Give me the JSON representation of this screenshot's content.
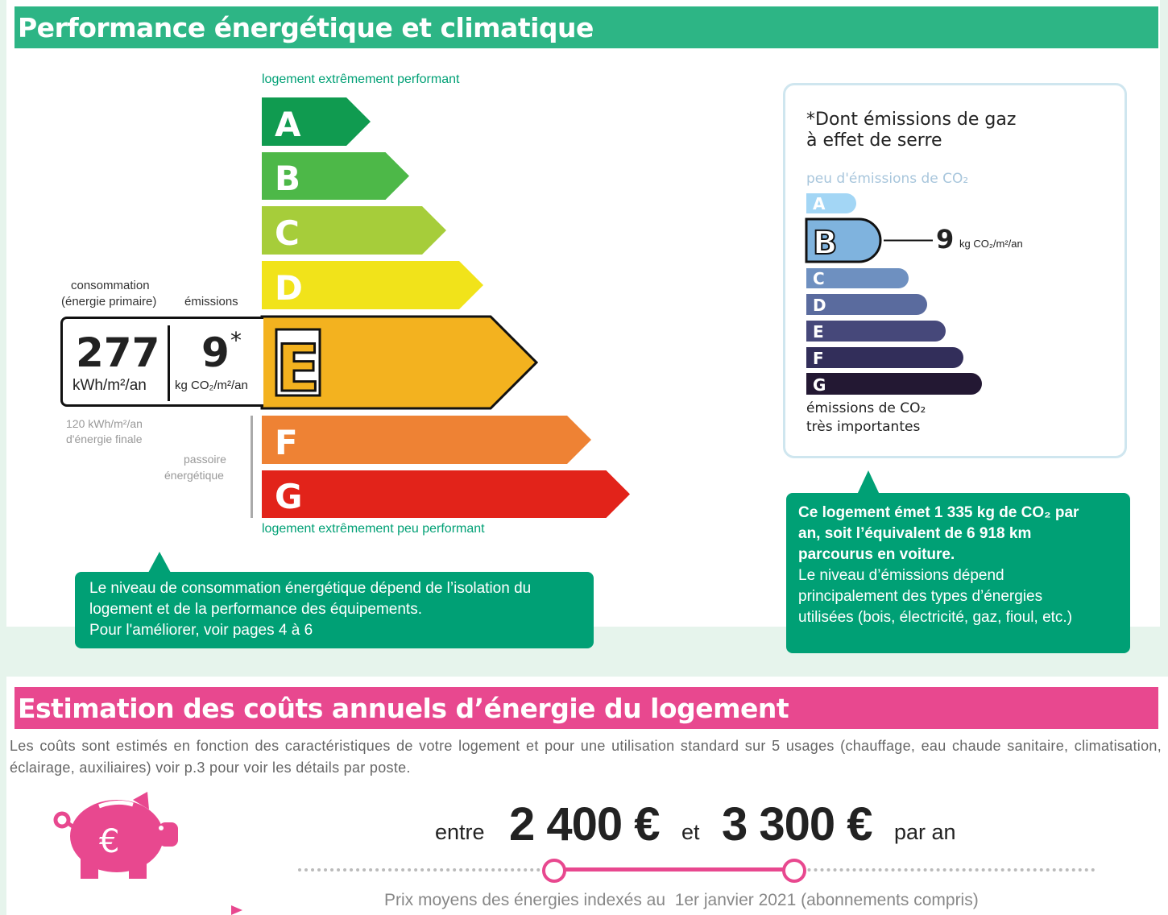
{
  "section1": {
    "title": "Performance énergétique et climatique",
    "color": "#2db585",
    "dpe": {
      "top_label": "logement extrêmement performant",
      "bottom_label": "logement extrêmement peu performant",
      "classes": [
        {
          "letter": "A",
          "color": "#109b50"
        },
        {
          "letter": "B",
          "color": "#4db848"
        },
        {
          "letter": "C",
          "color": "#a6cd3a"
        },
        {
          "letter": "D",
          "color": "#f1e31a"
        },
        {
          "letter": "E",
          "color": "#f3b21f"
        },
        {
          "letter": "F",
          "color": "#ee8234"
        },
        {
          "letter": "G",
          "color": "#e2231a"
        }
      ],
      "current_class": "E",
      "consumption_label": "consommation",
      "consumption_sub": "(énergie primaire)",
      "emissions_label": "émissions",
      "consumption_value": "277",
      "consumption_unit": "kWh/m²/an",
      "emissions_value": "9",
      "emissions_star": "*",
      "emissions_unit": "kg CO₂/m²/an",
      "final_energy_line1": "120 kWh/m²/an",
      "final_energy_line2": "d'énergie finale",
      "passoire_line1": "passoire",
      "passoire_line2": "énergétique"
    },
    "ges": {
      "title_line1": "*Dont émissions de gaz",
      "title_line2": "à effet de serre",
      "top_label": "peu d'émissions de CO₂",
      "bottom_line1": "émissions de CO₂",
      "bottom_line2": "très importantes",
      "classes": [
        {
          "letter": "A",
          "color": "#a3d6f5"
        },
        {
          "letter": "B",
          "color": "#7fb3de"
        },
        {
          "letter": "C",
          "color": "#6e90c0"
        },
        {
          "letter": "D",
          "color": "#5a6b9e"
        },
        {
          "letter": "E",
          "color": "#46487a"
        },
        {
          "letter": "F",
          "color": "#322e5a"
        },
        {
          "letter": "G",
          "color": "#231833"
        }
      ],
      "current_class": "B",
      "value": "9",
      "unit": "kg CO₂/m²/an"
    },
    "callout_left": {
      "line1": "Le niveau de consommation énergétique dépend de l’isolation du",
      "line2": "logement et de la performance des équipements.",
      "line3": "Pour l'améliorer, voir pages 4 à 6"
    },
    "callout_right": {
      "bold1": "Ce logement émet 1 335 kg de CO₂ par",
      "bold2": "an, soit l’équivalent de 6 918 km",
      "bold3": "parcourus en voiture.",
      "line1": "Le niveau d’émissions dépend",
      "line2": "principalement des types d’énergies",
      "line3": "utilisées (bois, électricité, gaz, fioul, etc.)"
    }
  },
  "section2": {
    "title": "Estimation des coûts annuels d’énergie du logement",
    "color": "#e8488f",
    "description": "Les coûts sont estimés en fonction des caractéristiques de votre logement et pour une utilisation standard sur 5 usages (chauffage, eau chaude sanitaire, climatisation, éclairage, auxiliaires) voir p.3 pour voir les détails par poste.",
    "icon": "piggy-bank-euro-icon",
    "between": "entre",
    "min": "2 400 €",
    "and": "et",
    "max": "3 300 €",
    "per_year": "par an",
    "footnote": "Prix moyens des énergies indexés au  1er janvier 2021 (abonnements compris)"
  }
}
